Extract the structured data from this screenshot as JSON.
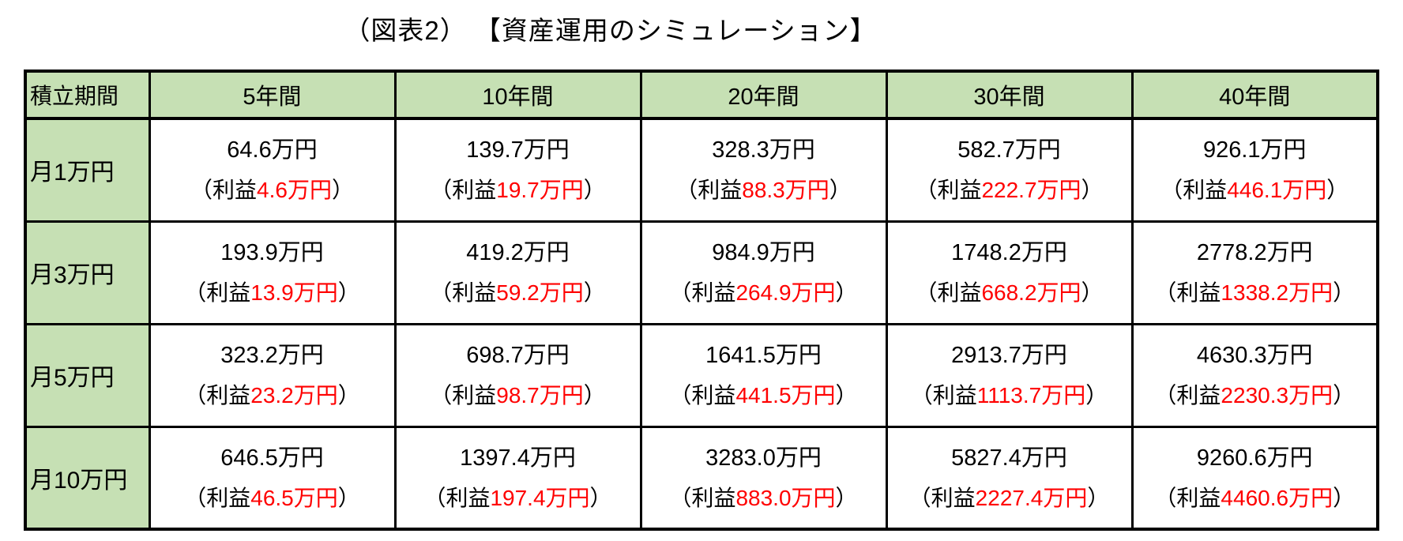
{
  "title": "（図表2） 【資産運用のシミュレーション】",
  "colors": {
    "header_green": "#c6e0b4",
    "profit_red": "#ff0000",
    "border_black": "#000000",
    "background": "#ffffff"
  },
  "table": {
    "corner_header": "積立期間",
    "column_headers": [
      "5年間",
      "10年間",
      "20年間",
      "30年間",
      "40年間"
    ],
    "profit_open": "（利益",
    "profit_close": "）",
    "rows": [
      {
        "label": "月1万円",
        "cells": [
          {
            "total": "64.6万円",
            "profit": "4.6万円"
          },
          {
            "total": "139.7万円",
            "profit": "19.7万円"
          },
          {
            "total": "328.3万円",
            "profit": "88.3万円"
          },
          {
            "total": "582.7万円",
            "profit": "222.7万円"
          },
          {
            "total": "926.1万円",
            "profit": "446.1万円"
          }
        ]
      },
      {
        "label": "月3万円",
        "cells": [
          {
            "total": "193.9万円",
            "profit": "13.9万円"
          },
          {
            "total": "419.2万円",
            "profit": "59.2万円"
          },
          {
            "total": "984.9万円",
            "profit": "264.9万円"
          },
          {
            "total": "1748.2万円",
            "profit": "668.2万円"
          },
          {
            "total": "2778.2万円",
            "profit": "1338.2万円"
          }
        ]
      },
      {
        "label": "月5万円",
        "cells": [
          {
            "total": "323.2万円",
            "profit": "23.2万円"
          },
          {
            "total": "698.7万円",
            "profit": "98.7万円"
          },
          {
            "total": "1641.5万円",
            "profit": "441.5万円"
          },
          {
            "total": "2913.7万円",
            "profit": "1113.7万円"
          },
          {
            "total": "4630.3万円",
            "profit": "2230.3万円"
          }
        ]
      },
      {
        "label": "月10万円",
        "cells": [
          {
            "total": "646.5万円",
            "profit": "46.5万円"
          },
          {
            "total": "1397.4万円",
            "profit": "197.4万円"
          },
          {
            "total": "3283.0万円",
            "profit": "883.0万円"
          },
          {
            "total": "5827.4万円",
            "profit": "2227.4万円"
          },
          {
            "total": "9260.6万円",
            "profit": "4460.6万円"
          }
        ]
      }
    ]
  },
  "chart_data": {
    "type": "table",
    "title": "（図表2） 【資産運用のシミュレーション】",
    "row_header": "積立期間",
    "columns": [
      "5年間",
      "10年間",
      "20年間",
      "30年間",
      "40年間"
    ],
    "unit": "万円",
    "rows": [
      {
        "label": "月1万円",
        "totals": [
          64.6,
          139.7,
          328.3,
          582.7,
          926.1
        ],
        "profits": [
          4.6,
          19.7,
          88.3,
          222.7,
          446.1
        ]
      },
      {
        "label": "月3万円",
        "totals": [
          193.9,
          419.2,
          984.9,
          1748.2,
          2778.2
        ],
        "profits": [
          13.9,
          59.2,
          264.9,
          668.2,
          1338.2
        ]
      },
      {
        "label": "月5万円",
        "totals": [
          323.2,
          698.7,
          1641.5,
          2913.7,
          4630.3
        ],
        "profits": [
          23.2,
          98.7,
          441.5,
          1113.7,
          2230.3
        ]
      },
      {
        "label": "月10万円",
        "totals": [
          646.5,
          1397.4,
          3283.0,
          5827.4,
          9260.6
        ],
        "profits": [
          46.5,
          197.4,
          883.0,
          2227.4,
          4460.6
        ]
      }
    ]
  }
}
